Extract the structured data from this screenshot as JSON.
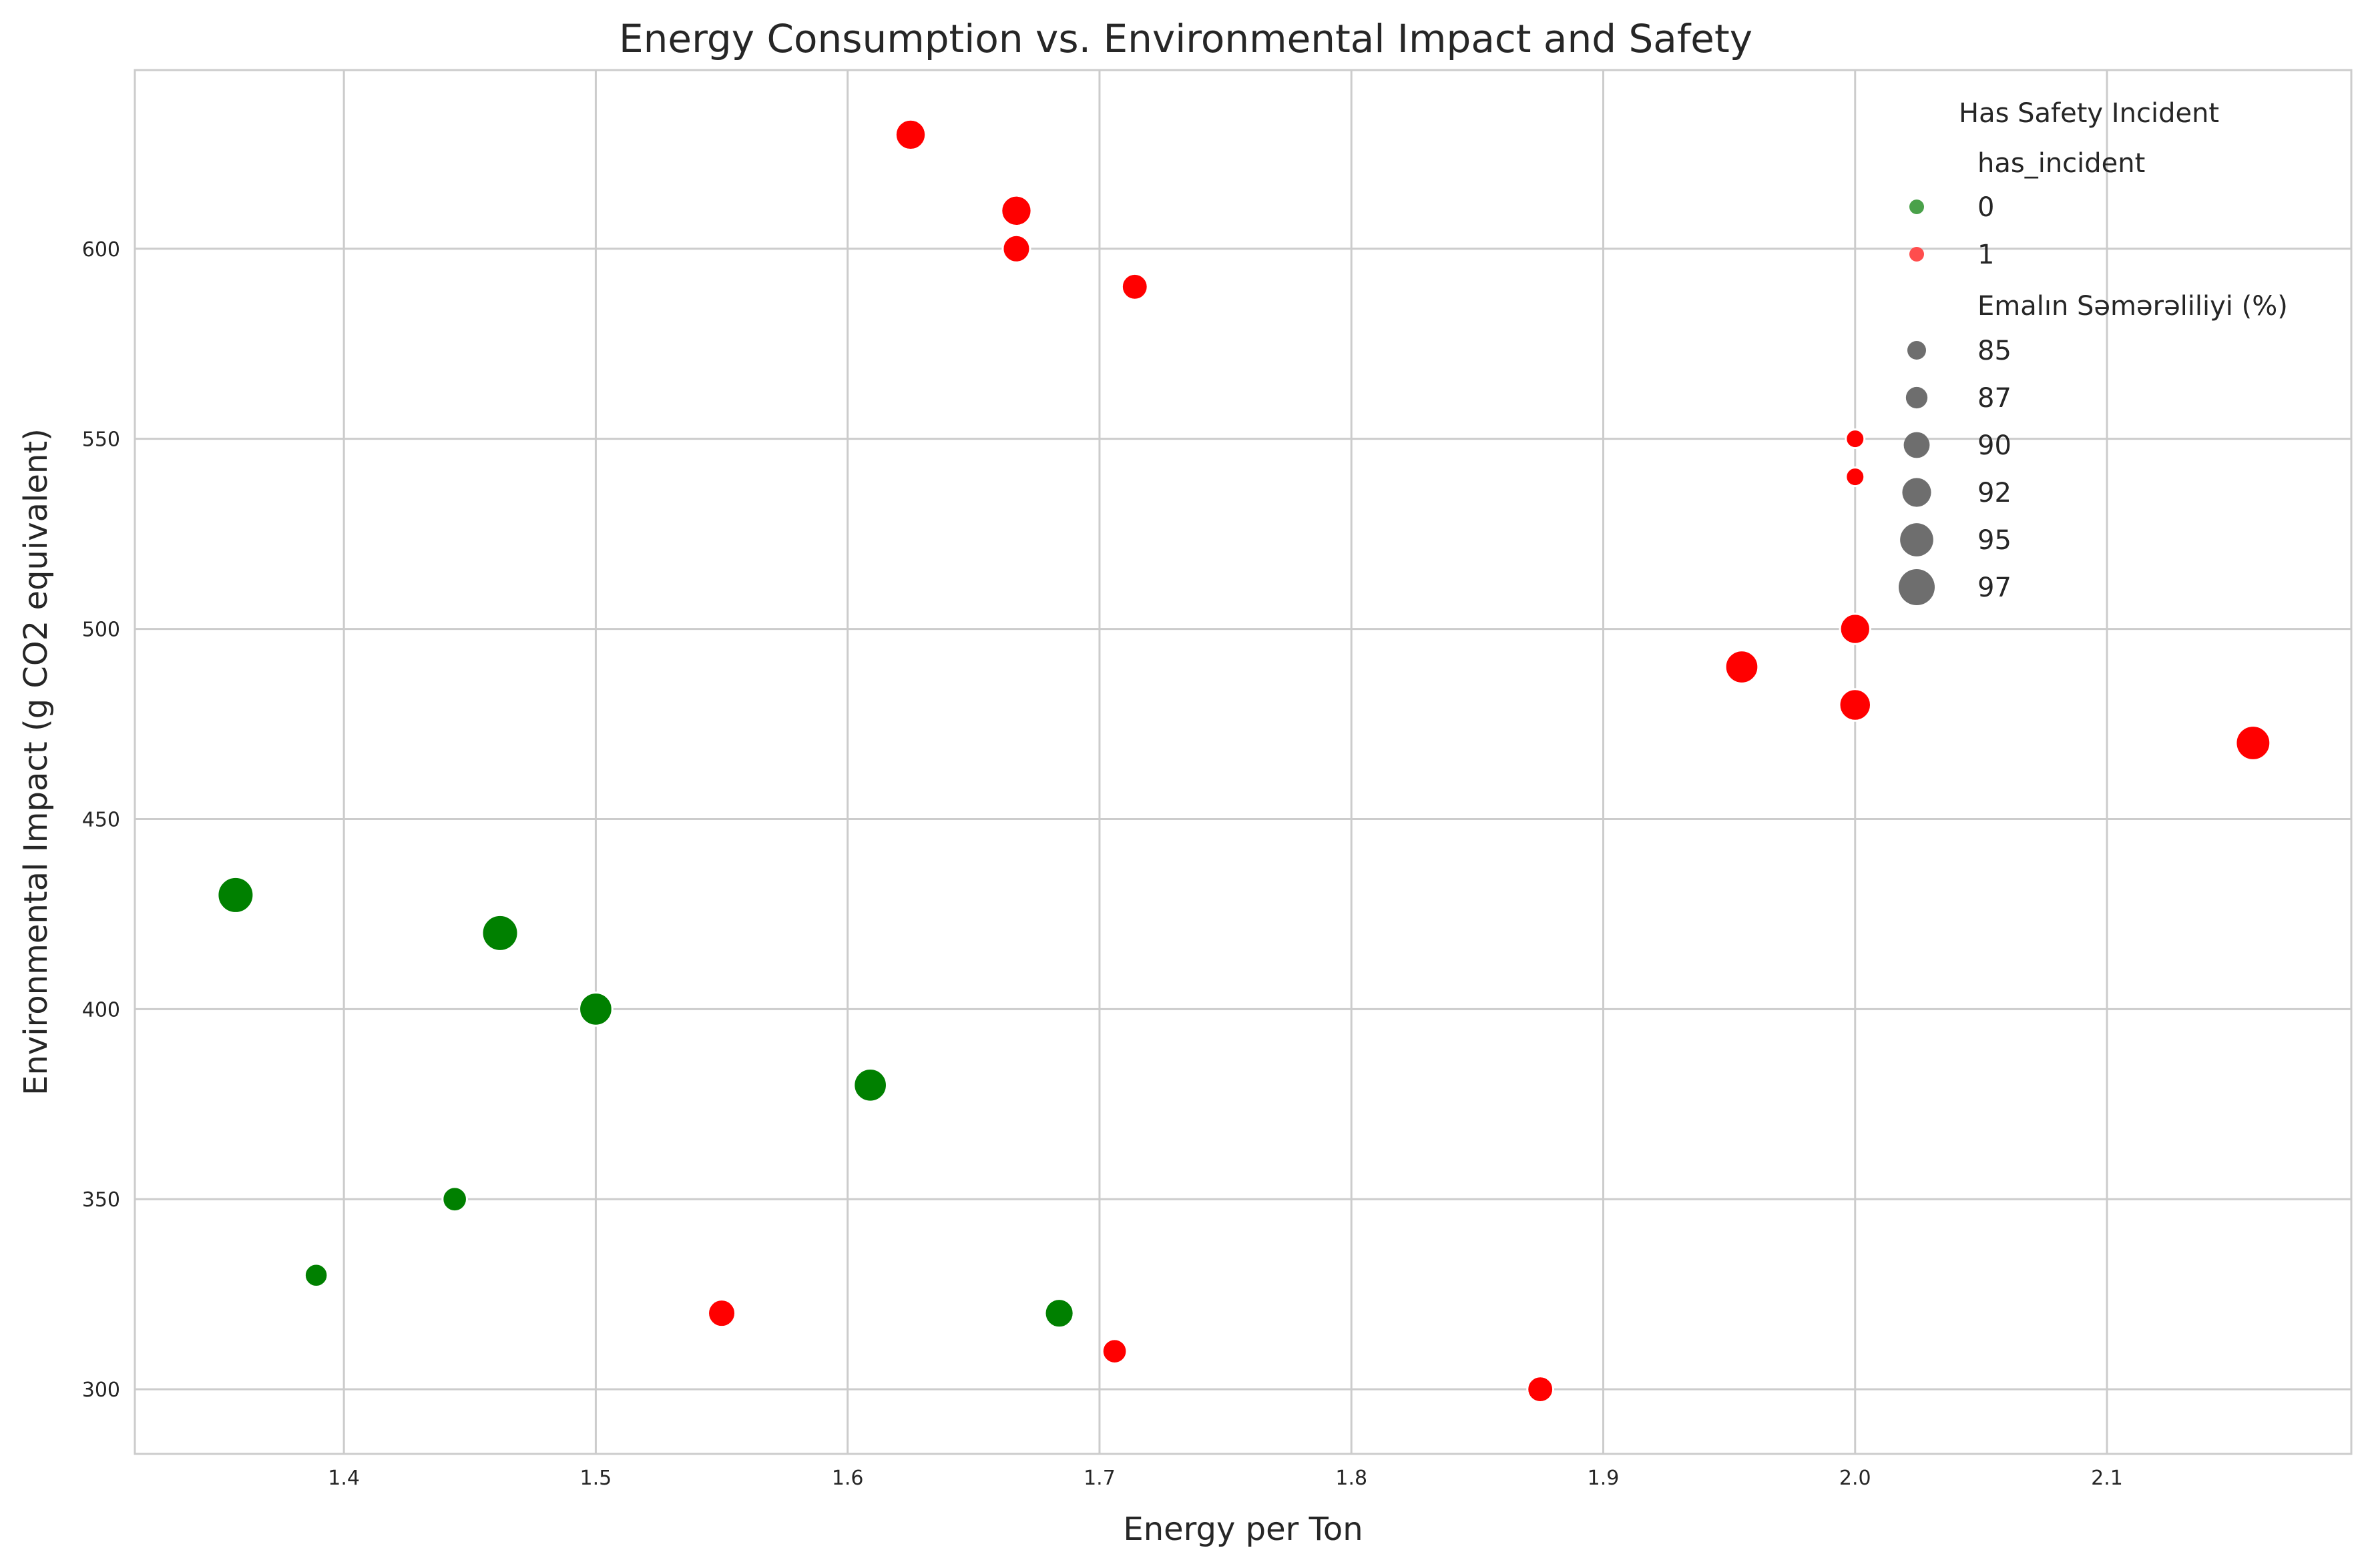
{
  "chart_data": {
    "type": "scatter",
    "title": "Energy Consumption vs. Environmental Impact and Safety",
    "xlabel": "Energy per Ton",
    "ylabel": "Environmental Impact (g CO2 equivalent)",
    "xlim": [
      1.317,
      2.197
    ],
    "ylim": [
      283,
      647
    ],
    "x_ticks": [
      "1.4",
      "1.5",
      "1.6",
      "1.7",
      "1.8",
      "1.9",
      "2.0",
      "2.1"
    ],
    "x_tick_values": [
      1.4,
      1.5,
      1.6,
      1.7,
      1.8,
      1.9,
      2.0,
      2.1
    ],
    "y_ticks": [
      "300",
      "350",
      "400",
      "450",
      "500",
      "550",
      "600"
    ],
    "y_tick_values": [
      300,
      350,
      400,
      450,
      500,
      550,
      600
    ],
    "grid": true,
    "colors": {
      "0": "#008000",
      "1": "#ff0000"
    },
    "legend": {
      "placement": "top-right",
      "title": "Has Safety Incident",
      "hue_title": "has_incident",
      "hue_entries": [
        {
          "label": "0",
          "color": "#4aa14a"
        },
        {
          "label": "1",
          "color": "#ff4d4d"
        }
      ],
      "size_title": "Emalın Səmərəliliyi (%)",
      "size_entries": [
        {
          "label": "85",
          "value": 85
        },
        {
          "label": "87",
          "value": 87
        },
        {
          "label": "90",
          "value": 90
        },
        {
          "label": "92",
          "value": 92
        },
        {
          "label": "95",
          "value": 95
        },
        {
          "label": "97",
          "value": 97
        }
      ],
      "size_marker_color": "#6e6e6e"
    },
    "points": [
      {
        "x": 1.625,
        "y": 630,
        "has_incident": 1,
        "efficiency": 93
      },
      {
        "x": 1.667,
        "y": 610,
        "has_incident": 1,
        "efficiency": 93
      },
      {
        "x": 1.667,
        "y": 600,
        "has_incident": 1,
        "efficiency": 91
      },
      {
        "x": 1.714,
        "y": 590,
        "has_incident": 1,
        "efficiency": 90
      },
      {
        "x": 2.0,
        "y": 550,
        "has_incident": 1,
        "efficiency": 85
      },
      {
        "x": 2.0,
        "y": 540,
        "has_incident": 1,
        "efficiency": 85
      },
      {
        "x": 2.0,
        "y": 500,
        "has_incident": 1,
        "efficiency": 93
      },
      {
        "x": 1.955,
        "y": 490,
        "has_incident": 1,
        "efficiency": 95
      },
      {
        "x": 2.0,
        "y": 480,
        "has_incident": 1,
        "efficiency": 94
      },
      {
        "x": 2.158,
        "y": 470,
        "has_incident": 1,
        "efficiency": 96
      },
      {
        "x": 1.357,
        "y": 430,
        "has_incident": 0,
        "efficiency": 97
      },
      {
        "x": 1.462,
        "y": 420,
        "has_incident": 0,
        "efficiency": 97
      },
      {
        "x": 1.5,
        "y": 400,
        "has_incident": 0,
        "efficiency": 95
      },
      {
        "x": 1.609,
        "y": 380,
        "has_incident": 0,
        "efficiency": 95
      },
      {
        "x": 1.444,
        "y": 350,
        "has_incident": 0,
        "efficiency": 89
      },
      {
        "x": 1.389,
        "y": 330,
        "has_incident": 0,
        "efficiency": 88
      },
      {
        "x": 1.55,
        "y": 320,
        "has_incident": 1,
        "efficiency": 91
      },
      {
        "x": 1.684,
        "y": 320,
        "has_incident": 0,
        "efficiency": 92
      },
      {
        "x": 1.706,
        "y": 310,
        "has_incident": 1,
        "efficiency": 89
      },
      {
        "x": 1.875,
        "y": 300,
        "has_incident": 1,
        "efficiency": 90
      }
    ]
  }
}
